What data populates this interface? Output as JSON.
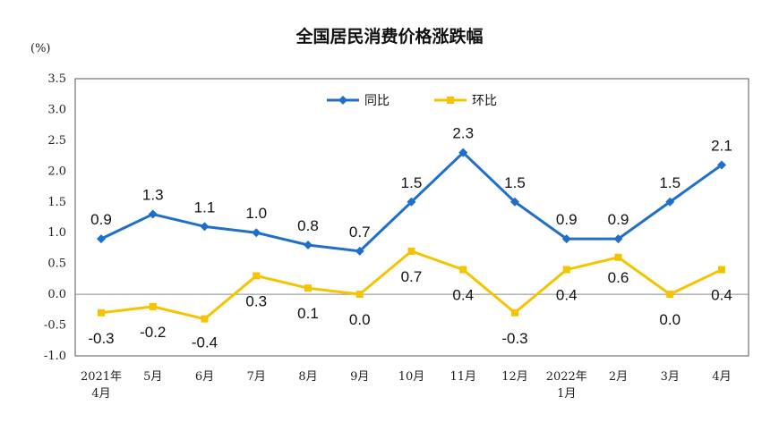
{
  "chart_data": {
    "type": "line",
    "title": "全国居民消费价格涨跌幅",
    "ylabel": "(%)",
    "xlabel": "",
    "categories": [
      [
        "2021年",
        "4月"
      ],
      [
        "5月"
      ],
      [
        "6月"
      ],
      [
        "7月"
      ],
      [
        "8月"
      ],
      [
        "9月"
      ],
      [
        "10月"
      ],
      [
        "11月"
      ],
      [
        "12月"
      ],
      [
        "2022年",
        "1月"
      ],
      [
        "2月"
      ],
      [
        "3月"
      ],
      [
        "4月"
      ]
    ],
    "series": [
      {
        "name": "同比",
        "color": "#1F6FC9",
        "values": [
          0.9,
          1.3,
          1.1,
          1.0,
          0.8,
          0.7,
          1.5,
          2.3,
          1.5,
          0.9,
          0.9,
          1.5,
          2.1
        ],
        "labels": [
          "0.9",
          "1.3",
          "1.1",
          "1.0",
          "0.8",
          "0.7",
          "1.5",
          "2.3",
          "1.5",
          "0.9",
          "0.9",
          "1.5",
          "2.1"
        ]
      },
      {
        "name": "环比",
        "color": "#F5C400",
        "values": [
          -0.3,
          -0.2,
          -0.4,
          0.3,
          0.1,
          0.0,
          0.7,
          0.4,
          -0.3,
          0.4,
          0.6,
          0.0,
          0.4
        ],
        "labels": [
          "-0.3",
          "-0.2",
          "-0.4",
          "0.3",
          "0.1",
          "0.0",
          "0.7",
          "0.4",
          "-0.3",
          "0.4",
          "0.6",
          "0.0",
          "0.4"
        ]
      }
    ],
    "ylim": [
      -1.0,
      3.5
    ],
    "yticks": [
      "3.5",
      "3.0",
      "2.5",
      "2.0",
      "1.5",
      "1.0",
      "0.5",
      "0.0",
      "-0.5",
      "-1.0"
    ],
    "ytick_values": [
      3.5,
      3.0,
      2.5,
      2.0,
      1.5,
      1.0,
      0.5,
      0.0,
      -0.5,
      -1.0
    ],
    "legend_position": "top-center",
    "grid": false
  }
}
